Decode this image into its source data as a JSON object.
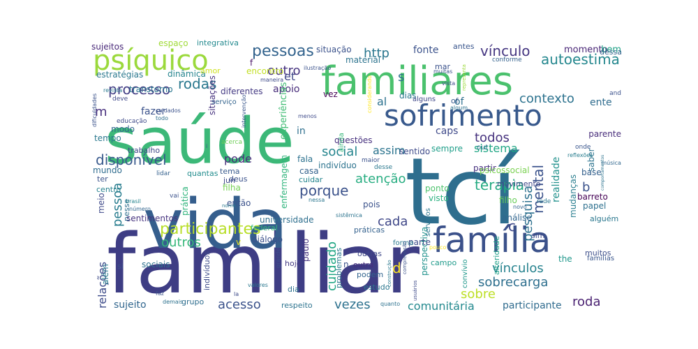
{
  "words": [
    {
      "text": "familiar",
      "color": "#3e3d84"
    },
    {
      "text": "tcí",
      "color": "#2e6e8e"
    },
    {
      "text": "saúde",
      "color": "#3cb878"
    },
    {
      "text": "vida",
      "color": "#355e8d"
    },
    {
      "text": "familiares",
      "color": "#4ac16d"
    },
    {
      "text": "família",
      "color": "#3b518a"
    },
    {
      "text": "sofrimento",
      "color": "#38598c"
    },
    {
      "text": "psíquico",
      "color": "#9bd93c"
    },
    {
      "text": "participantes",
      "color": "#b8de29"
    },
    {
      "text": "pessoas",
      "color": "#33638d"
    },
    {
      "text": "processo",
      "color": "#433e85"
    },
    {
      "text": "autoestima",
      "color": "#24878e"
    },
    {
      "text": "vínculo",
      "color": "#453681"
    },
    {
      "text": "rodas",
      "color": "#2a788e"
    },
    {
      "text": "contexto",
      "color": "#2c728e"
    },
    {
      "text": "social",
      "color": "#25858e"
    },
    {
      "text": "disponível",
      "color": "#38598c"
    },
    {
      "text": "atenção",
      "color": "#27ad81"
    },
    {
      "text": "terapia",
      "color": "#25ab82"
    },
    {
      "text": "porque",
      "color": "#3b528b"
    },
    {
      "text": "sistema",
      "color": "#21a685"
    },
    {
      "text": "todos",
      "color": "#46327e"
    },
    {
      "text": "pessoa",
      "color": "#287c8e"
    },
    {
      "text": "mental",
      "color": "#3b528b"
    },
    {
      "text": "pesquisa",
      "color": "#2d708e"
    },
    {
      "text": "cuidado",
      "color": "#22a785"
    },
    {
      "text": "vínculos",
      "color": "#26828e"
    },
    {
      "text": "sobrecarga",
      "color": "#2e6f8e"
    },
    {
      "text": "comunitária",
      "color": "#23898e"
    },
    {
      "text": "acesso",
      "color": "#3b528b"
    },
    {
      "text": "vezes",
      "color": "#2c718e"
    },
    {
      "text": "roda",
      "color": "#481f70"
    },
    {
      "text": "relações",
      "color": "#3e4c8a"
    },
    {
      "text": "outros",
      "color": "#35b779"
    },
    {
      "text": "outro",
      "color": "#46337f"
    },
    {
      "text": "http",
      "color": "#2a768e"
    },
    {
      "text": "cada",
      "color": "#3f4788"
    },
    {
      "text": "assim",
      "color": "#2b748e"
    },
    {
      "text": "pode",
      "color": "#472d7b"
    },
    {
      "text": "sobre",
      "color": "#bddf26"
    },
    {
      "text": "participante",
      "color": "#2f6b8e"
    },
    {
      "text": "sujeito",
      "color": "#31668e"
    },
    {
      "text": "d",
      "color": "#fde725"
    },
    {
      "text": "c",
      "color": "#3e4989"
    },
    {
      "text": "b",
      "color": "#3b528b"
    },
    {
      "text": "s",
      "color": "#2d708e"
    },
    {
      "text": "m",
      "color": "#472f7d"
    },
    {
      "text": "et",
      "color": "#3f4788"
    },
    {
      "text": "al",
      "color": "#2c718e"
    },
    {
      "text": "caps",
      "color": "#3e4989"
    },
    {
      "text": "fazer",
      "color": "#3b528b"
    },
    {
      "text": "apoio",
      "color": "#472c7a"
    },
    {
      "text": "ente",
      "color": "#2f6c8e"
    },
    {
      "text": "realidade",
      "color": "#21918c"
    },
    {
      "text": "of",
      "color": "#2e6e8e"
    },
    {
      "text": "in",
      "color": "#2e6f8e"
    },
    {
      "text": "fonte",
      "color": "#3b528b"
    },
    {
      "text": "momento",
      "color": "#482576"
    },
    {
      "text": "bem",
      "color": "#1fa187"
    },
    {
      "text": "sujeitos",
      "color": "#482878"
    },
    {
      "text": "espaço",
      "color": "#a0da39"
    },
    {
      "text": "integrativa",
      "color": "#23898e"
    },
    {
      "text": "situação",
      "color": "#3b528b"
    },
    {
      "text": "material",
      "color": "#2c738e"
    },
    {
      "text": "estratégias",
      "color": "#2a788e"
    },
    {
      "text": "dinâmica",
      "color": "#25848e"
    },
    {
      "text": "amor",
      "color": "#cde11d"
    },
    {
      "text": "encontro",
      "color": "#c2df23"
    },
    {
      "text": "f",
      "color": "#471164"
    },
    {
      "text": "transtorno",
      "color": "#2a768e"
    },
    {
      "text": "diferentes",
      "color": "#443a83"
    },
    {
      "text": "situações",
      "color": "#46327e"
    },
    {
      "text": "experiências",
      "color": "#3fbc73"
    },
    {
      "text": "questões",
      "color": "#46307e"
    },
    {
      "text": "sentido",
      "color": "#3e4a89"
    },
    {
      "text": "dias",
      "color": "#2a778e"
    },
    {
      "text": "alguns",
      "color": "#3f4788"
    },
    {
      "text": "vez",
      "color": "#440154"
    },
    {
      "text": "antes",
      "color": "#39558c"
    },
    {
      "text": "mar",
      "color": "#3b528b"
    },
    {
      "text": "conforme",
      "color": "#34618d"
    },
    {
      "text": "dessa",
      "color": "#33638d"
    },
    {
      "text": "parente",
      "color": "#472c7a"
    },
    {
      "text": "saber",
      "color": "#2c738e"
    },
    {
      "text": "sempre",
      "color": "#1f9e89"
    },
    {
      "text": "modo",
      "color": "#31668e"
    },
    {
      "text": "tempo",
      "color": "#2a788e"
    },
    {
      "text": "trabalho",
      "color": "#3f4889"
    },
    {
      "text": "mundo",
      "color": "#2f6c8e"
    },
    {
      "text": "ter",
      "color": "#3b528b"
    },
    {
      "text": "centro",
      "color": "#26828e"
    },
    {
      "text": "meio",
      "color": "#3e4989"
    },
    {
      "text": "nesse",
      "color": "#2e6e8e"
    },
    {
      "text": "quantas",
      "color": "#228c8d"
    },
    {
      "text": "tema",
      "color": "#38598c"
    },
    {
      "text": "deus",
      "color": "#3b528b"
    },
    {
      "text": "jun",
      "color": "#3e4989"
    },
    {
      "text": "filha",
      "color": "#75d054"
    },
    {
      "text": "casa",
      "color": "#34618d"
    },
    {
      "text": "fala",
      "color": "#2c718e"
    },
    {
      "text": "prática",
      "color": "#30b47c"
    },
    {
      "text": "então",
      "color": "#3b528b"
    },
    {
      "text": "cuidar",
      "color": "#25858e"
    },
    {
      "text": "enfermagem",
      "color": "#2fb47c"
    },
    {
      "text": "indivíduo",
      "color": "#2c738e"
    },
    {
      "text": "pois",
      "color": "#3b528b"
    },
    {
      "text": "partir",
      "color": "#46307e"
    },
    {
      "text": "ponto",
      "color": "#4cc26c"
    },
    {
      "text": "visto",
      "color": "#2ab07f"
    },
    {
      "text": "filho",
      "color": "#69cd5b"
    },
    {
      "text": "psicossocial",
      "color": "#7ad151"
    },
    {
      "text": "mudanças",
      "color": "#287d8e"
    },
    {
      "text": "movimento",
      "color": "#3f4788"
    },
    {
      "text": "base",
      "color": "#34608d"
    },
    {
      "text": "barreto",
      "color": "#440154"
    },
    {
      "text": "papel",
      "color": "#2d708e"
    },
    {
      "text": "alguém",
      "color": "#2a778e"
    },
    {
      "text": "sentimentos",
      "color": "#46337f"
    },
    {
      "text": "universidade",
      "color": "#2e6f8e"
    },
    {
      "text": "federal",
      "color": "#31b57b"
    },
    {
      "text": "diálogo",
      "color": "#3b518b"
    },
    {
      "text": "práticas",
      "color": "#34618d"
    },
    {
      "text": "análise",
      "color": "#31668e"
    },
    {
      "text": "perspectiva",
      "color": "#20928c"
    },
    {
      "text": "parte",
      "color": "#3e4a89"
    },
    {
      "text": "sim",
      "color": "#3e4989"
    },
    {
      "text": "muitos",
      "color": "#3d4e8a"
    },
    {
      "text": "the",
      "color": "#1f978b"
    },
    {
      "text": "famílias",
      "color": "#39558c"
    },
    {
      "text": "sociais",
      "color": "#2d718e"
    },
    {
      "text": "indivíduos",
      "color": "#3e4c8a"
    },
    {
      "text": "hoje",
      "color": "#443a83"
    },
    {
      "text": "dia",
      "color": "#2c718e"
    },
    {
      "text": "problemas",
      "color": "#2a788e"
    },
    {
      "text": "outras",
      "color": "#3f4889"
    },
    {
      "text": "outra",
      "color": "#472f7d"
    },
    {
      "text": "podem",
      "color": "#32648e"
    },
    {
      "text": "estudo",
      "color": "#2a768e"
    },
    {
      "text": "campo",
      "color": "#1f9a8a"
    },
    {
      "text": "grupo",
      "color": "#2e6d8e"
    },
    {
      "text": "respeito",
      "color": "#2c738e"
    },
    {
      "text": "além",
      "color": "#287c8e"
    },
    {
      "text": "si",
      "color": "#3b528b"
    },
    {
      "text": "paulo",
      "color": "#46337f"
    },
    {
      "text": "n",
      "color": "#3b528b"
    },
    {
      "text": "v",
      "color": "#e5e419"
    },
    {
      "text": "serviços",
      "color": "#2a768e"
    },
    {
      "text": "forma",
      "color": "#2a788e"
    },
    {
      "text": "alteridade",
      "color": "#1fa088"
    },
    {
      "text": "convívio",
      "color": "#1f988b"
    },
    {
      "text": "lidar",
      "color": "#34618d"
    },
    {
      "text": "vai",
      "color": "#3b528b"
    },
    {
      "text": "brasil",
      "color": "#25848e"
    },
    {
      "text": "número",
      "color": "#31668e"
    },
    {
      "text": "rede",
      "color": "#2a788e"
    },
    {
      "text": "novo",
      "color": "#32648e"
    },
    {
      "text": "música",
      "color": "#31678e"
    },
    {
      "text": "reflexões",
      "color": "#287d8e"
    },
    {
      "text": "onde",
      "color": "#39558c"
    },
    {
      "text": "and",
      "color": "#3b518b"
    },
    {
      "text": "algum",
      "color": "#2c718e"
    },
    {
      "text": "of",
      "color": "#38598c"
    },
    {
      "text": "out",
      "color": "#2e6e8e"
    },
    {
      "text": "desse",
      "color": "#2a788e"
    },
    {
      "text": "maior",
      "color": "#3b528b"
    },
    {
      "text": "ainda",
      "color": "#35b779"
    },
    {
      "text": "menos",
      "color": "#3e4a89"
    },
    {
      "text": "cuidados",
      "color": "#3b528b"
    },
    {
      "text": "educação",
      "color": "#3e4a89"
    },
    {
      "text": "todo",
      "color": "#2e6e8e"
    },
    {
      "text": "revista",
      "color": "#2a788e"
    },
    {
      "text": "deve",
      "color": "#3f4889"
    },
    {
      "text": "serviço",
      "color": "#33638d"
    },
    {
      "text": "intervenção",
      "color": "#39568c"
    },
    {
      "text": "maneira",
      "color": "#3e4a89"
    },
    {
      "text": "ilustração",
      "color": "#3b528b"
    },
    {
      "text": "nessa",
      "color": "#2a768e"
    },
    {
      "text": "sistêmica",
      "color": "#2c738e"
    },
    {
      "text": "compreensão",
      "color": "#3b528b"
    },
    {
      "text": "construção",
      "color": "#2a788e"
    },
    {
      "text": "pouco",
      "color": "#fde725"
    },
    {
      "text": "usuários",
      "color": "#3e4a89"
    },
    {
      "text": "quanto",
      "color": "#2c718e"
    },
    {
      "text": "grande",
      "color": "#3b528b"
    },
    {
      "text": "valores",
      "color": "#2a788e"
    },
    {
      "text": "la",
      "color": "#3e4a89"
    },
    {
      "text": "faz",
      "color": "#3b528b"
    },
    {
      "text": "demais",
      "color": "#2c718e"
    },
    {
      "text": "muitas",
      "color": "#3b528b"
    },
    {
      "text": "vista",
      "color": "#3e4a89"
    },
    {
      "text": "representa",
      "color": "#9bd93c"
    },
    {
      "text": "dificuldades",
      "color": "#3b528b"
    },
    {
      "text": "considerando",
      "color": "#fde725"
    },
    {
      "text": "nome",
      "color": "#2a788e"
    },
    {
      "text": "acerca",
      "color": "#6ece58"
    },
    {
      "text": "comportamentos",
      "color": "#2c738e"
    },
    {
      "text": "i",
      "color": "#3b528b"
    }
  ]
}
